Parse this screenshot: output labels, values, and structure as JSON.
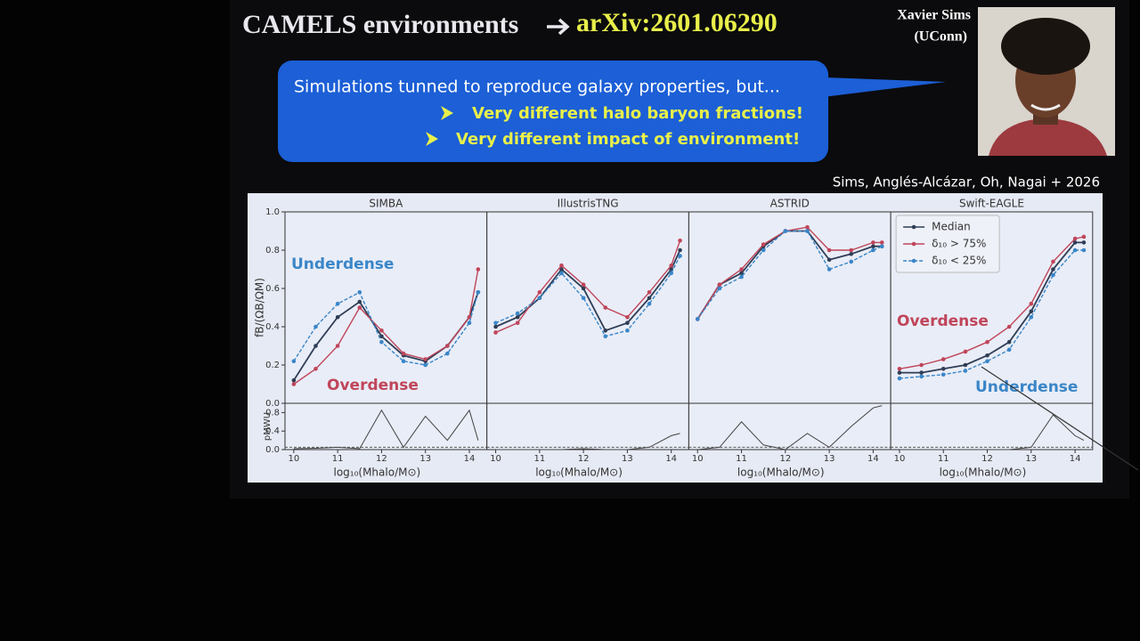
{
  "slide": {
    "title": "CAMELS environments",
    "link": "arXiv:2601.06290",
    "callout": {
      "text": "Simulations tunned to reproduce galaxy properties, but...",
      "bullets": [
        "Very different halo baryon fractions!",
        "Very different impact of environment!"
      ]
    },
    "speaker": {
      "name": "Xavier Sims",
      "affiliation": "(UConn)"
    },
    "citation": "Sims, Anglés-Alcázar, Oh, Nagai + 2026"
  },
  "chart_data": [
    {
      "type": "line",
      "title": "SIMBA",
      "ylabel": "fB/(ΩB/ΩM)",
      "xlabel": "log₁₀(Mhalo/M⊙)",
      "x": [
        10.0,
        10.5,
        11.0,
        11.5,
        12.0,
        12.5,
        13.0,
        13.5,
        14.0,
        14.2
      ],
      "xlim": [
        9.8,
        14.4
      ],
      "xticks": [
        10,
        11,
        12,
        13,
        14
      ],
      "ylim": [
        0,
        1
      ],
      "yticks": [
        {
          "value": 0,
          "label": "0.0"
        },
        0.2,
        0.4,
        0.6,
        0.8,
        {
          "value": 1,
          "label": "1.0"
        }
      ],
      "series": [
        {
          "color": "#2f3d55",
          "values": [
            0.12,
            0.3,
            0.45,
            0.53,
            0.35,
            0.25,
            0.22,
            0.3,
            0.45,
            0.58
          ]
        },
        {
          "color": "#c0455a",
          "values": [
            0.1,
            0.18,
            0.3,
            0.5,
            0.38,
            0.26,
            0.23,
            0.3,
            0.45,
            0.7
          ]
        },
        {
          "color": "#3a86c8",
          "values": [
            0.22,
            0.4,
            0.52,
            0.58,
            0.32,
            0.22,
            0.2,
            0.26,
            0.42,
            0.58
          ]
        }
      ],
      "annotations": [
        {
          "text": "Underdense",
          "color": "#3a86c8"
        },
        {
          "text": "Overdense",
          "color": "#c0455a"
        }
      ],
      "p_label": "pMWU",
      "p_ylim": [
        0,
        1
      ],
      "p_yticks": [
        {
          "value": 0,
          "label": "0.0"
        },
        0.4,
        0.8
      ],
      "p_threshold": 0.05,
      "p_values": [
        0.02,
        0.03,
        0.05,
        0.02,
        0.85,
        0.05,
        0.72,
        0.2,
        0.85,
        0.2
      ]
    },
    {
      "type": "line",
      "title": "IllustrisTNG",
      "xlabel": "log₁₀(Mhalo/M⊙)",
      "x": [
        10.0,
        10.5,
        11.0,
        11.5,
        12.0,
        12.5,
        13.0,
        13.5,
        14.0,
        14.2
      ],
      "xlim": [
        9.8,
        14.4
      ],
      "xticks": [
        10,
        11,
        12,
        13,
        14
      ],
      "ylim": [
        0,
        1
      ],
      "series": [
        {
          "color": "#2f3d55",
          "values": [
            0.4,
            0.45,
            0.55,
            0.7,
            0.6,
            0.38,
            0.42,
            0.55,
            0.7,
            0.8
          ]
        },
        {
          "color": "#c0455a",
          "values": [
            0.37,
            0.42,
            0.58,
            0.72,
            0.62,
            0.5,
            0.45,
            0.58,
            0.72,
            0.85
          ]
        },
        {
          "color": "#3a86c8",
          "values": [
            0.42,
            0.47,
            0.55,
            0.68,
            0.55,
            0.35,
            0.38,
            0.52,
            0.68,
            0.77
          ]
        }
      ],
      "annotations": [],
      "p_ylim": [
        0,
        1
      ],
      "p_threshold": 0.05,
      "p_values": [
        0,
        0,
        0,
        0,
        0.02,
        0,
        0,
        0.05,
        0.3,
        0.35
      ]
    },
    {
      "type": "line",
      "title": "ASTRID",
      "xlabel": "log₁₀(Mhalo/M⊙)",
      "x": [
        10.0,
        10.5,
        11.0,
        11.5,
        12.0,
        12.5,
        13.0,
        13.5,
        14.0,
        14.2
      ],
      "xlim": [
        9.8,
        14.4
      ],
      "xticks": [
        10,
        11,
        12,
        13,
        14
      ],
      "ylim": [
        0,
        1
      ],
      "series": [
        {
          "color": "#2f3d55",
          "values": [
            0.44,
            0.62,
            0.68,
            0.82,
            0.9,
            0.9,
            0.75,
            0.78,
            0.82,
            0.82
          ]
        },
        {
          "color": "#c0455a",
          "values": [
            0.44,
            0.62,
            0.7,
            0.83,
            0.9,
            0.92,
            0.8,
            0.8,
            0.84,
            0.84
          ]
        },
        {
          "color": "#3a86c8",
          "values": [
            0.44,
            0.6,
            0.66,
            0.8,
            0.9,
            0.9,
            0.7,
            0.74,
            0.8,
            0.82
          ]
        }
      ],
      "annotations": [],
      "p_ylim": [
        0,
        1
      ],
      "p_threshold": 0.05,
      "p_values": [
        0,
        0.05,
        0.6,
        0.1,
        0,
        0.35,
        0.05,
        0.5,
        0.9,
        0.95
      ]
    },
    {
      "type": "line",
      "title": "Swift-EAGLE",
      "xlabel": "log₁₀(Mhalo/M⊙)",
      "legend": "upper left",
      "x": [
        10.0,
        10.5,
        11.0,
        11.5,
        12.0,
        12.5,
        13.0,
        13.5,
        14.0,
        14.2
      ],
      "xlim": [
        9.8,
        14.4
      ],
      "xticks": [
        10,
        11,
        12,
        13,
        14
      ],
      "ylim": [
        0,
        1
      ],
      "series": [
        {
          "name": "Median",
          "color": "#2f3d55",
          "values": [
            0.16,
            0.16,
            0.18,
            0.2,
            0.25,
            0.32,
            0.48,
            0.7,
            0.84,
            0.84
          ]
        },
        {
          "name": "δ₁₀ > 75%",
          "color": "#c0455a",
          "values": [
            0.18,
            0.2,
            0.23,
            0.27,
            0.32,
            0.4,
            0.52,
            0.74,
            0.86,
            0.87
          ]
        },
        {
          "name": "δ₁₀ < 25%",
          "color": "#3a86c8",
          "values": [
            0.13,
            0.14,
            0.15,
            0.17,
            0.22,
            0.28,
            0.45,
            0.67,
            0.8,
            0.8
          ]
        }
      ],
      "annotations": [
        {
          "text": "Overdense",
          "color": "#c0455a"
        },
        {
          "text": "Underdense",
          "color": "#3a86c8"
        }
      ],
      "p_ylim": [
        0,
        1
      ],
      "p_threshold": 0.05,
      "p_values": [
        0,
        0,
        0,
        0,
        0,
        0,
        0.05,
        0.75,
        0.3,
        0.2
      ]
    }
  ]
}
